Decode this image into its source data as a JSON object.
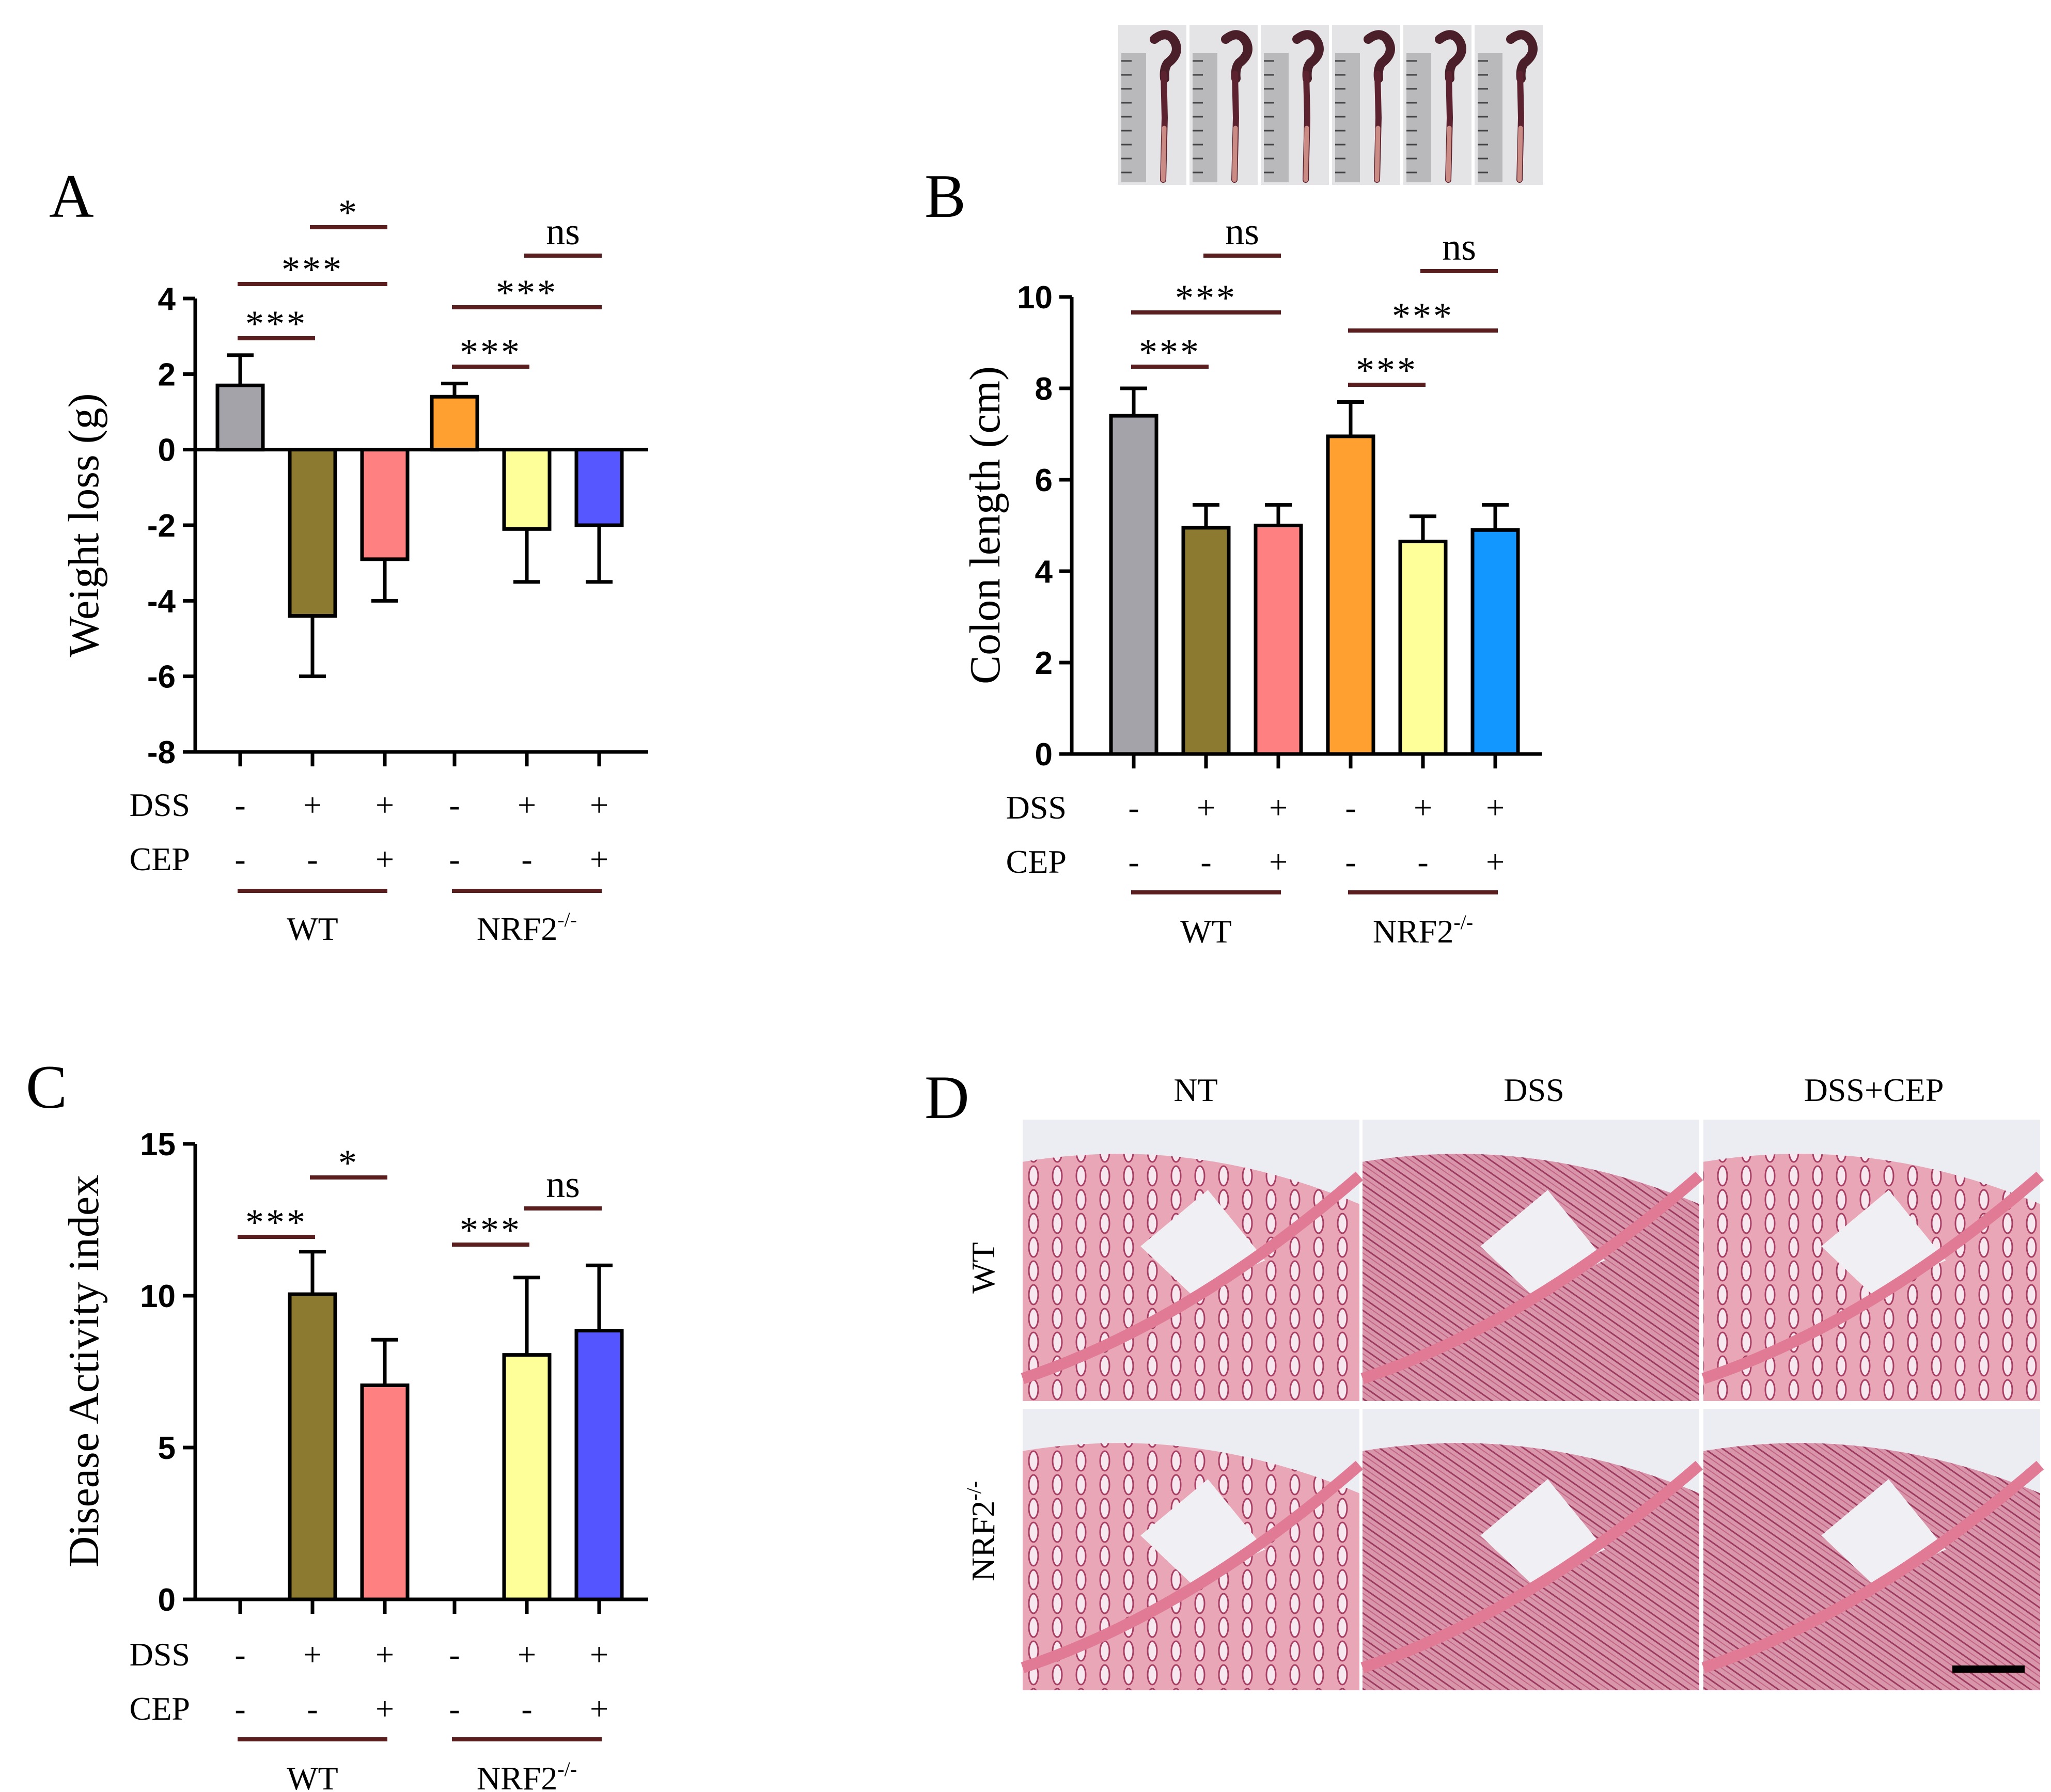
{
  "figure": {
    "colors": {
      "wt_ctrl": "#a4a3a9",
      "wt_dss": "#8b7a2f",
      "wt_dss_cep": "#ff8080",
      "ko_ctrl": "#ffa030",
      "ko_dss": "#ffff9a",
      "ko_dss_cep_A": "#5757ff",
      "ko_dss_cep_B": "#1296ff",
      "ko_dss_cep_C": "#5555ff",
      "bracket": "#5a1e1e",
      "tissue_pink": "#e07a95",
      "tissue_dark": "#8c2850",
      "tissue_bg": "#ecedf2"
    },
    "treatment_labels": {
      "dss": "DSS",
      "cep": "CEP"
    },
    "group_labels": {
      "wt": "WT",
      "ko": "NRF2",
      "ko_sup": "-/-"
    },
    "dss_signs": [
      "-",
      "+",
      "+",
      "-",
      "+",
      "+"
    ],
    "cep_signs": [
      "-",
      "-",
      "+",
      "-",
      "-",
      "+"
    ]
  },
  "colon_photos": {
    "count": 6,
    "ruler_marks": [
      "1",
      "2",
      "3",
      "4",
      "5",
      "6",
      "7"
    ]
  },
  "panel_d": {
    "letter": "D",
    "column_labels": [
      "NT",
      "DSS",
      "DSS+CEP"
    ],
    "row_labels": [
      "WT",
      "NRF2"
    ],
    "row_sup": "-/-"
  },
  "chart_data": [
    {
      "panel": "A",
      "type": "bar",
      "ylabel": "Weight loss (g)",
      "ylim": [
        -8,
        4
      ],
      "yticks": [
        "4",
        "2",
        "0",
        "-2",
        "-4",
        "-6",
        "-8"
      ],
      "yticks_values": [
        4,
        2,
        0,
        -2,
        -4,
        -6,
        -8
      ],
      "values": [
        1.7,
        -4.4,
        -2.9,
        1.4,
        -2.1,
        -2.0
      ],
      "errors": [
        0.8,
        1.6,
        1.1,
        0.35,
        1.4,
        1.5
      ],
      "color_keys": [
        "wt_ctrl",
        "wt_dss",
        "wt_dss_cep",
        "ko_ctrl",
        "ko_dss",
        "ko_dss_cep_A"
      ],
      "significance": [
        {
          "from": 0,
          "to": 1,
          "label": "***"
        },
        {
          "from": 0,
          "to": 2,
          "label": "***"
        },
        {
          "from": 1,
          "to": 2,
          "label": "*"
        },
        {
          "from": 3,
          "to": 4,
          "label": "***"
        },
        {
          "from": 3,
          "to": 5,
          "label": "***"
        },
        {
          "from": 4,
          "to": 5,
          "label": "ns"
        }
      ]
    },
    {
      "panel": "B",
      "type": "bar",
      "ylabel": "Colon length (cm)",
      "ylim": [
        0,
        10
      ],
      "yticks": [
        "10",
        "8",
        "6",
        "4",
        "2",
        "0"
      ],
      "yticks_values": [
        10,
        8,
        6,
        4,
        2,
        0
      ],
      "values": [
        7.4,
        4.95,
        5.0,
        6.95,
        4.65,
        4.9
      ],
      "errors": [
        0.6,
        0.5,
        0.45,
        0.75,
        0.55,
        0.55
      ],
      "color_keys": [
        "wt_ctrl",
        "wt_dss",
        "wt_dss_cep",
        "ko_ctrl",
        "ko_dss",
        "ko_dss_cep_B"
      ],
      "significance": [
        {
          "from": 0,
          "to": 1,
          "label": "***"
        },
        {
          "from": 0,
          "to": 2,
          "label": "***"
        },
        {
          "from": 1,
          "to": 2,
          "label": "ns"
        },
        {
          "from": 3,
          "to": 4,
          "label": "***"
        },
        {
          "from": 3,
          "to": 5,
          "label": "***"
        },
        {
          "from": 4,
          "to": 5,
          "label": "ns"
        }
      ]
    },
    {
      "panel": "C",
      "type": "bar",
      "ylabel": "Disease Activity index",
      "ylim": [
        0,
        15
      ],
      "yticks": [
        "15",
        "10",
        "5",
        "0"
      ],
      "yticks_values": [
        15,
        10,
        5,
        0
      ],
      "values": [
        0,
        10.05,
        7.05,
        0,
        8.05,
        8.85
      ],
      "errors": [
        0,
        1.4,
        1.5,
        0,
        2.55,
        2.15
      ],
      "color_keys": [
        "wt_ctrl",
        "wt_dss",
        "wt_dss_cep",
        "ko_ctrl",
        "ko_dss",
        "ko_dss_cep_C"
      ],
      "significance": [
        {
          "from": 0,
          "to": 1,
          "label": "***"
        },
        {
          "from": 1,
          "to": 2,
          "label": "*"
        },
        {
          "from": 3,
          "to": 4,
          "label": "***"
        },
        {
          "from": 4,
          "to": 5,
          "label": "ns"
        }
      ]
    }
  ]
}
